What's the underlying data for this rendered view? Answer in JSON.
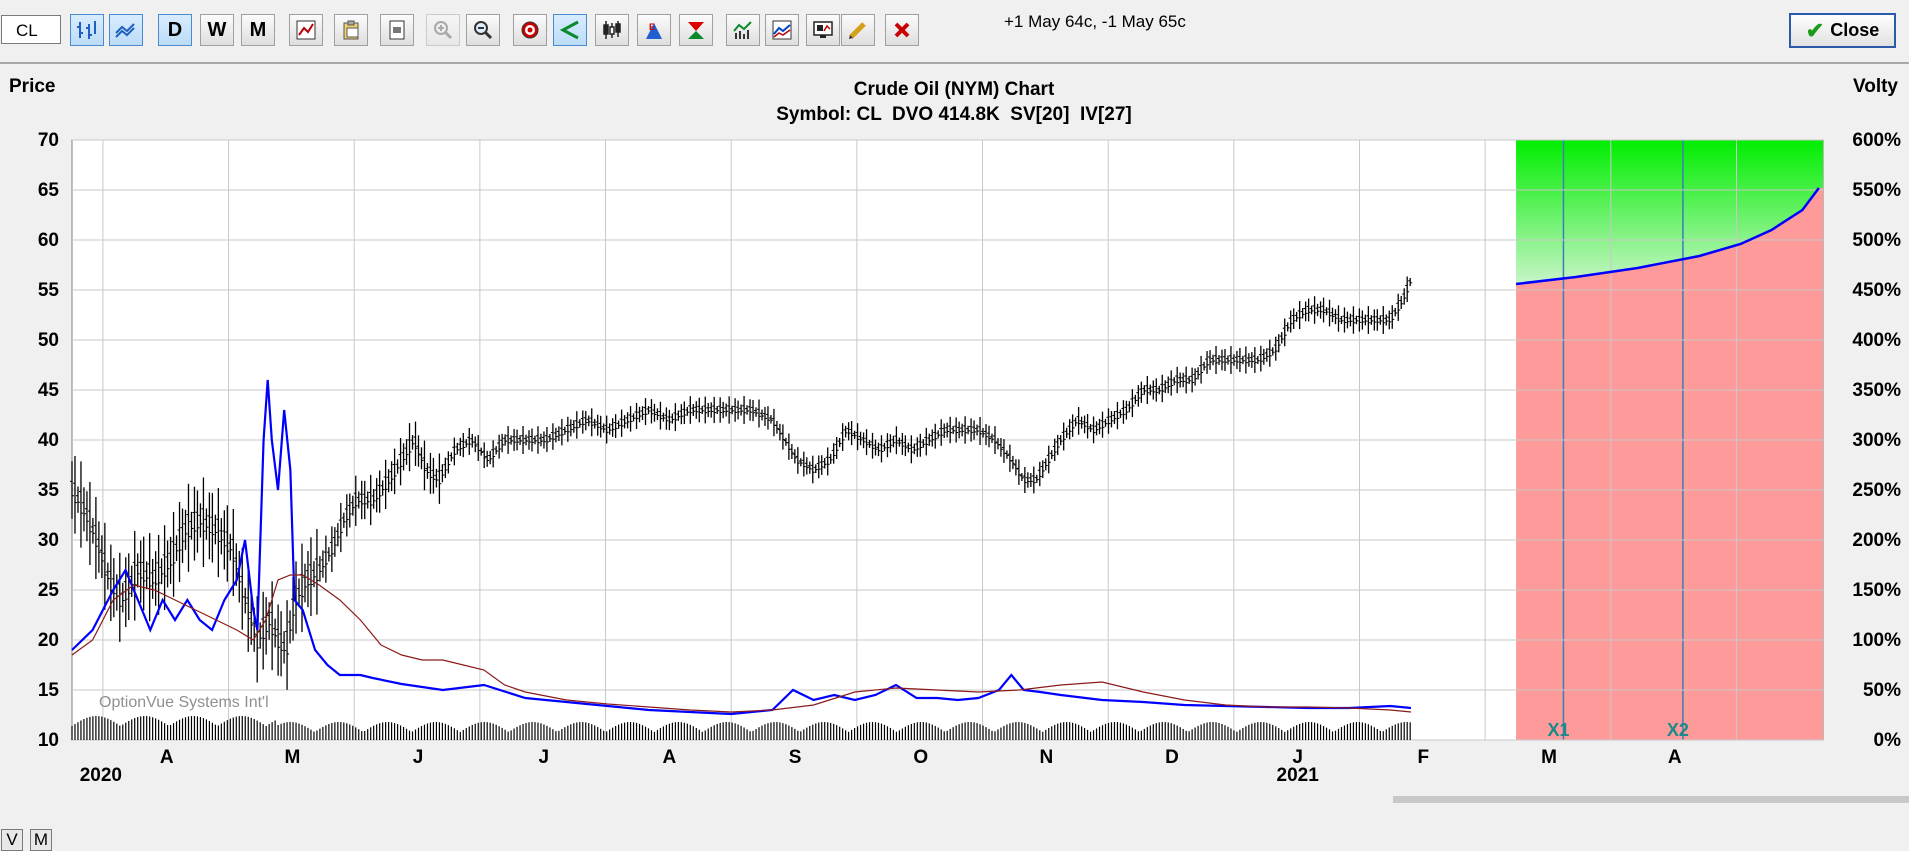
{
  "toolbar": {
    "symbol_value": "CL",
    "day_label": "D",
    "week_label": "W",
    "month_label": "M",
    "strategy_text": "+1 May 64c, -1 May 65c",
    "close_label": "Close"
  },
  "bottom": {
    "v_label": "V",
    "m_label": "M"
  },
  "colors": {
    "price_bars": "#000000",
    "statistical_volatility": "#0000ff",
    "implied_volatility": "#8b1a1a",
    "profit_zone": "#00ee00",
    "loss_zone": "#ff9a9a",
    "background": "#ffffff"
  },
  "chart_data": {
    "type": "bar",
    "title": "Crude Oil (NYM) Chart",
    "subtitle": "Symbol: CL  DVO 414.8K  SV[20]  IV[27]",
    "watermark": "OptionVue Systems Int'l",
    "ylabel": "Price",
    "ylabel_right": "Volty",
    "ylim": [
      10,
      70
    ],
    "yticks": [
      70,
      65,
      60,
      55,
      50,
      45,
      40,
      35,
      30,
      25,
      20,
      15,
      10
    ],
    "ylim_right": [
      0,
      600
    ],
    "yticks_right": [
      "600%",
      "550%",
      "500%",
      "450%",
      "400%",
      "350%",
      "300%",
      "250%",
      "200%",
      "150%",
      "100%",
      "50%",
      "0%"
    ],
    "month_labels": [
      "A",
      "M",
      "J",
      "J",
      "A",
      "S",
      "O",
      "N",
      "D",
      "J",
      "F",
      "M",
      "A"
    ],
    "month_label_days": [
      46,
      107,
      168,
      229,
      290,
      351,
      412,
      473,
      534,
      595,
      656,
      717,
      778
    ],
    "year_labels": [
      {
        "label": "2020",
        "day": 14
      },
      {
        "label": "2021",
        "day": 595
      }
    ],
    "x_range_days": [
      0,
      850
    ],
    "history_end_day": 701,
    "grid": true,
    "price_keypoints": [
      {
        "day": 0,
        "price": 35
      },
      {
        "day": 6,
        "price": 33
      },
      {
        "day": 12,
        "price": 30
      },
      {
        "day": 18,
        "price": 26
      },
      {
        "day": 24,
        "price": 24
      },
      {
        "day": 32,
        "price": 27
      },
      {
        "day": 40,
        "price": 26
      },
      {
        "day": 48,
        "price": 28
      },
      {
        "day": 55,
        "price": 31
      },
      {
        "day": 62,
        "price": 32
      },
      {
        "day": 70,
        "price": 31
      },
      {
        "day": 78,
        "price": 29
      },
      {
        "day": 84,
        "price": 24
      },
      {
        "day": 90,
        "price": 20
      },
      {
        "day": 96,
        "price": 22
      },
      {
        "day": 100,
        "price": 20
      },
      {
        "day": 104,
        "price": 19
      },
      {
        "day": 108,
        "price": 24
      },
      {
        "day": 114,
        "price": 26
      },
      {
        "day": 120,
        "price": 27
      },
      {
        "day": 126,
        "price": 29
      },
      {
        "day": 132,
        "price": 32
      },
      {
        "day": 138,
        "price": 34
      },
      {
        "day": 146,
        "price": 34
      },
      {
        "day": 154,
        "price": 36
      },
      {
        "day": 160,
        "price": 38
      },
      {
        "day": 166,
        "price": 40
      },
      {
        "day": 172,
        "price": 37
      },
      {
        "day": 178,
        "price": 36
      },
      {
        "day": 186,
        "price": 39
      },
      {
        "day": 194,
        "price": 40
      },
      {
        "day": 202,
        "price": 38
      },
      {
        "day": 210,
        "price": 40
      },
      {
        "day": 220,
        "price": 40
      },
      {
        "day": 230,
        "price": 40
      },
      {
        "day": 240,
        "price": 41
      },
      {
        "day": 250,
        "price": 42
      },
      {
        "day": 260,
        "price": 41
      },
      {
        "day": 270,
        "price": 42
      },
      {
        "day": 280,
        "price": 43
      },
      {
        "day": 290,
        "price": 42
      },
      {
        "day": 300,
        "price": 43
      },
      {
        "day": 310,
        "price": 43
      },
      {
        "day": 320,
        "price": 43
      },
      {
        "day": 330,
        "price": 43
      },
      {
        "day": 340,
        "price": 42
      },
      {
        "day": 346,
        "price": 40
      },
      {
        "day": 352,
        "price": 38
      },
      {
        "day": 360,
        "price": 37
      },
      {
        "day": 368,
        "price": 38
      },
      {
        "day": 376,
        "price": 41
      },
      {
        "day": 384,
        "price": 40
      },
      {
        "day": 392,
        "price": 39
      },
      {
        "day": 400,
        "price": 40
      },
      {
        "day": 408,
        "price": 39
      },
      {
        "day": 416,
        "price": 40
      },
      {
        "day": 424,
        "price": 41
      },
      {
        "day": 432,
        "price": 41
      },
      {
        "day": 440,
        "price": 41
      },
      {
        "day": 448,
        "price": 40
      },
      {
        "day": 456,
        "price": 38
      },
      {
        "day": 462,
        "price": 36
      },
      {
        "day": 468,
        "price": 36
      },
      {
        "day": 474,
        "price": 38
      },
      {
        "day": 480,
        "price": 40
      },
      {
        "day": 488,
        "price": 42
      },
      {
        "day": 496,
        "price": 41
      },
      {
        "day": 504,
        "price": 42
      },
      {
        "day": 512,
        "price": 43
      },
      {
        "day": 520,
        "price": 45
      },
      {
        "day": 528,
        "price": 45
      },
      {
        "day": 536,
        "price": 46
      },
      {
        "day": 544,
        "price": 46
      },
      {
        "day": 552,
        "price": 48
      },
      {
        "day": 560,
        "price": 48
      },
      {
        "day": 568,
        "price": 48
      },
      {
        "day": 576,
        "price": 48
      },
      {
        "day": 584,
        "price": 49
      },
      {
        "day": 592,
        "price": 52
      },
      {
        "day": 600,
        "price": 53
      },
      {
        "day": 608,
        "price": 53
      },
      {
        "day": 616,
        "price": 52
      },
      {
        "day": 624,
        "price": 52
      },
      {
        "day": 632,
        "price": 52
      },
      {
        "day": 640,
        "price": 52
      },
      {
        "day": 646,
        "price": 54
      },
      {
        "day": 650,
        "price": 56
      }
    ],
    "series": [
      {
        "name": "SV[20]",
        "points": [
          {
            "day": 0,
            "value": 90
          },
          {
            "day": 10,
            "value": 110
          },
          {
            "day": 20,
            "value": 150
          },
          {
            "day": 26,
            "value": 170
          },
          {
            "day": 32,
            "value": 140
          },
          {
            "day": 38,
            "value": 110
          },
          {
            "day": 44,
            "value": 140
          },
          {
            "day": 50,
            "value": 120
          },
          {
            "day": 56,
            "value": 140
          },
          {
            "day": 62,
            "value": 120
          },
          {
            "day": 68,
            "value": 110
          },
          {
            "day": 74,
            "value": 140
          },
          {
            "day": 80,
            "value": 160
          },
          {
            "day": 84,
            "value": 200
          },
          {
            "day": 88,
            "value": 130
          },
          {
            "day": 90,
            "value": 110
          },
          {
            "day": 93,
            "value": 300
          },
          {
            "day": 95,
            "value": 360
          },
          {
            "day": 97,
            "value": 300
          },
          {
            "day": 100,
            "value": 250
          },
          {
            "day": 103,
            "value": 330
          },
          {
            "day": 106,
            "value": 270
          },
          {
            "day": 108,
            "value": 140
          },
          {
            "day": 112,
            "value": 130
          },
          {
            "day": 118,
            "value": 90
          },
          {
            "day": 124,
            "value": 75
          },
          {
            "day": 130,
            "value": 65
          },
          {
            "day": 140,
            "value": 65
          },
          {
            "day": 146,
            "value": 62
          },
          {
            "day": 160,
            "value": 56
          },
          {
            "day": 180,
            "value": 50
          },
          {
            "day": 200,
            "value": 55
          },
          {
            "day": 220,
            "value": 42
          },
          {
            "day": 240,
            "value": 38
          },
          {
            "day": 260,
            "value": 34
          },
          {
            "day": 280,
            "value": 30
          },
          {
            "day": 300,
            "value": 28
          },
          {
            "day": 320,
            "value": 26
          },
          {
            "day": 340,
            "value": 30
          },
          {
            "day": 350,
            "value": 50
          },
          {
            "day": 360,
            "value": 40
          },
          {
            "day": 370,
            "value": 45
          },
          {
            "day": 380,
            "value": 40
          },
          {
            "day": 390,
            "value": 45
          },
          {
            "day": 400,
            "value": 55
          },
          {
            "day": 410,
            "value": 42
          },
          {
            "day": 420,
            "value": 42
          },
          {
            "day": 430,
            "value": 40
          },
          {
            "day": 440,
            "value": 42
          },
          {
            "day": 450,
            "value": 50
          },
          {
            "day": 456,
            "value": 65
          },
          {
            "day": 462,
            "value": 50
          },
          {
            "day": 470,
            "value": 48
          },
          {
            "day": 480,
            "value": 45
          },
          {
            "day": 500,
            "value": 40
          },
          {
            "day": 520,
            "value": 38
          },
          {
            "day": 540,
            "value": 35
          },
          {
            "day": 560,
            "value": 34
          },
          {
            "day": 580,
            "value": 33
          },
          {
            "day": 600,
            "value": 32
          },
          {
            "day": 620,
            "value": 32
          },
          {
            "day": 640,
            "value": 34
          },
          {
            "day": 650,
            "value": 32
          }
        ]
      },
      {
        "name": "IV[27]",
        "points": [
          {
            "day": 0,
            "value": 85
          },
          {
            "day": 10,
            "value": 100
          },
          {
            "day": 20,
            "value": 140
          },
          {
            "day": 30,
            "value": 155
          },
          {
            "day": 40,
            "value": 150
          },
          {
            "day": 50,
            "value": 140
          },
          {
            "day": 60,
            "value": 130
          },
          {
            "day": 70,
            "value": 120
          },
          {
            "day": 80,
            "value": 110
          },
          {
            "day": 88,
            "value": 100
          },
          {
            "day": 94,
            "value": 120
          },
          {
            "day": 100,
            "value": 160
          },
          {
            "day": 106,
            "value": 165
          },
          {
            "day": 112,
            "value": 165
          },
          {
            "day": 120,
            "value": 155
          },
          {
            "day": 130,
            "value": 140
          },
          {
            "day": 140,
            "value": 120
          },
          {
            "day": 150,
            "value": 95
          },
          {
            "day": 160,
            "value": 85
          },
          {
            "day": 170,
            "value": 80
          },
          {
            "day": 180,
            "value": 80
          },
          {
            "day": 190,
            "value": 75
          },
          {
            "day": 200,
            "value": 70
          },
          {
            "day": 210,
            "value": 55
          },
          {
            "day": 220,
            "value": 48
          },
          {
            "day": 240,
            "value": 40
          },
          {
            "day": 260,
            "value": 36
          },
          {
            "day": 280,
            "value": 33
          },
          {
            "day": 300,
            "value": 30
          },
          {
            "day": 320,
            "value": 28
          },
          {
            "day": 340,
            "value": 30
          },
          {
            "day": 360,
            "value": 35
          },
          {
            "day": 380,
            "value": 48
          },
          {
            "day": 400,
            "value": 52
          },
          {
            "day": 420,
            "value": 50
          },
          {
            "day": 440,
            "value": 48
          },
          {
            "day": 460,
            "value": 50
          },
          {
            "day": 480,
            "value": 55
          },
          {
            "day": 500,
            "value": 58
          },
          {
            "day": 520,
            "value": 48
          },
          {
            "day": 540,
            "value": 40
          },
          {
            "day": 560,
            "value": 35
          },
          {
            "day": 580,
            "value": 33
          },
          {
            "day": 600,
            "value": 33
          },
          {
            "day": 620,
            "value": 32
          },
          {
            "day": 640,
            "value": 30
          },
          {
            "day": 650,
            "value": 28
          }
        ]
      },
      {
        "name": "breakeven-curve",
        "points": [
          {
            "day": 701,
            "value": 456
          },
          {
            "day": 730,
            "value": 463
          },
          {
            "day": 760,
            "value": 472
          },
          {
            "day": 790,
            "value": 484
          },
          {
            "day": 810,
            "value": 496
          },
          {
            "day": 825,
            "value": 510
          },
          {
            "day": 840,
            "value": 530
          },
          {
            "day": 848,
            "value": 552
          }
        ]
      }
    ],
    "expirations": [
      {
        "label": "X1",
        "day": 724
      },
      {
        "label": "X2",
        "day": 782
      }
    ]
  }
}
